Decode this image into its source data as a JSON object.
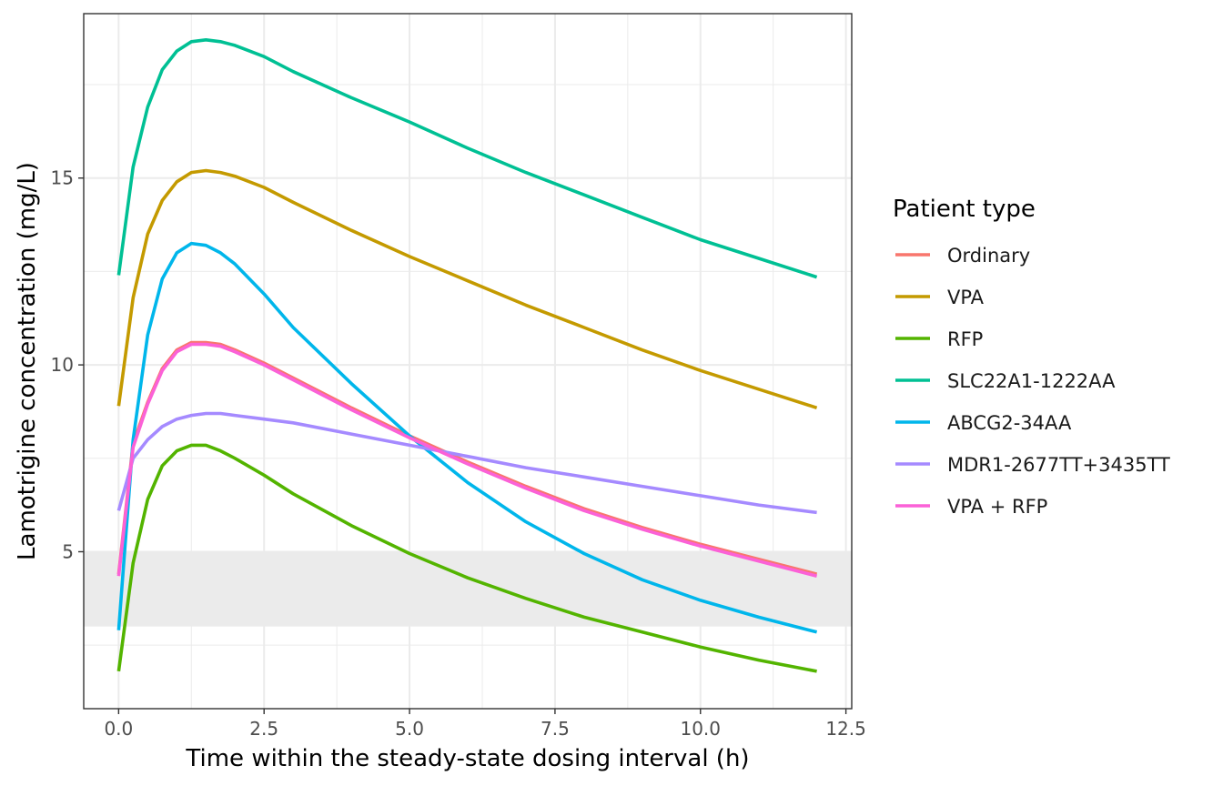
{
  "chart_data": {
    "type": "line",
    "xlabel": "Time within the steady-state dosing interval (h)",
    "ylabel": "Lamotrigine concentration (mg/L)",
    "xlim": [
      -0.6,
      12.6
    ],
    "ylim": [
      0.8,
      19.4
    ],
    "x_ticks": [
      0,
      2.5,
      5,
      7.5,
      10,
      12.5
    ],
    "x_tick_labels": [
      "0.0",
      "2.5",
      "5.0",
      "7.5",
      "10.0",
      "12.5"
    ],
    "y_ticks": [
      5,
      10,
      15
    ],
    "y_tick_labels": [
      "5",
      "10",
      "15"
    ],
    "grid": true,
    "shaded_band": {
      "y_from": 3,
      "y_to": 5,
      "color": "#ebebeb"
    },
    "legend": {
      "title": "Patient type",
      "position": "right"
    },
    "x": [
      0,
      0.25,
      0.5,
      0.75,
      1,
      1.25,
      1.5,
      1.75,
      2,
      2.5,
      3,
      4,
      5,
      6,
      7,
      8,
      9,
      10,
      11,
      12
    ],
    "series": [
      {
        "name": "Ordinary",
        "color": "#F8766D",
        "values": [
          4.4,
          7.9,
          9.0,
          9.9,
          10.4,
          10.6,
          10.6,
          10.55,
          10.4,
          10.05,
          9.65,
          8.85,
          8.1,
          7.4,
          6.75,
          6.15,
          5.65,
          5.2,
          4.8,
          4.4
        ]
      },
      {
        "name": "VPA",
        "color": "#C49A00",
        "values": [
          8.9,
          11.8,
          13.5,
          14.4,
          14.9,
          15.15,
          15.2,
          15.15,
          15.05,
          14.75,
          14.35,
          13.6,
          12.9,
          12.25,
          11.6,
          11.0,
          10.4,
          9.85,
          9.35,
          8.85
        ]
      },
      {
        "name": "RFP",
        "color": "#53B400",
        "values": [
          1.8,
          4.7,
          6.4,
          7.3,
          7.7,
          7.85,
          7.85,
          7.7,
          7.5,
          7.05,
          6.55,
          5.7,
          4.95,
          4.3,
          3.75,
          3.25,
          2.85,
          2.45,
          2.1,
          1.8
        ]
      },
      {
        "name": "SLC22A1-1222AA",
        "color": "#00C094",
        "values": [
          12.4,
          15.3,
          16.9,
          17.9,
          18.4,
          18.65,
          18.7,
          18.65,
          18.55,
          18.25,
          17.85,
          17.15,
          16.5,
          15.8,
          15.15,
          14.55,
          13.95,
          13.35,
          12.85,
          12.35
        ]
      },
      {
        "name": "ABCG2-34AA",
        "color": "#00B6EB",
        "values": [
          2.9,
          8.0,
          10.8,
          12.3,
          13.0,
          13.25,
          13.2,
          13.0,
          12.7,
          11.9,
          11.0,
          9.5,
          8.1,
          6.85,
          5.8,
          4.95,
          4.25,
          3.7,
          3.25,
          2.85
        ]
      },
      {
        "name": "MDR1-2677TT+3435TT",
        "color": "#A58AFF",
        "values": [
          6.1,
          7.5,
          8.0,
          8.35,
          8.55,
          8.65,
          8.7,
          8.7,
          8.65,
          8.55,
          8.45,
          8.15,
          7.85,
          7.55,
          7.25,
          7.0,
          6.75,
          6.5,
          6.25,
          6.05
        ]
      },
      {
        "name": "VPA + RFP",
        "color": "#FB61D7",
        "values": [
          4.35,
          7.8,
          8.95,
          9.85,
          10.35,
          10.55,
          10.55,
          10.5,
          10.35,
          10.0,
          9.6,
          8.8,
          8.05,
          7.35,
          6.7,
          6.1,
          5.6,
          5.15,
          4.75,
          4.35
        ]
      }
    ]
  }
}
